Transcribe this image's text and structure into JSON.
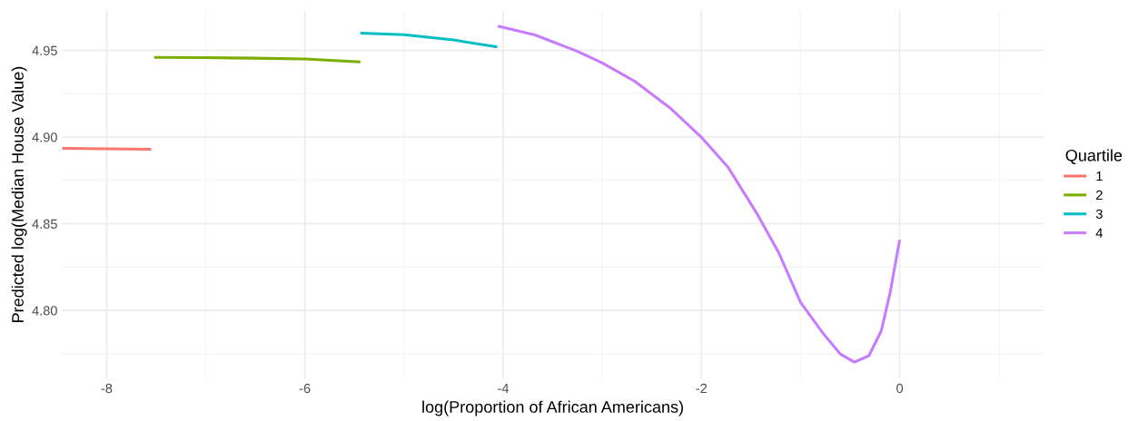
{
  "chart_data": {
    "type": "line",
    "xlabel": "log(Proportion of African Americans)",
    "ylabel": "Predicted log(Median House Value)",
    "legend_title": "Quartile",
    "legend": "right",
    "grid": true,
    "marker": "none",
    "line_style": "solid",
    "xlim": [
      -8.45,
      1.45
    ],
    "xticks": [
      -8,
      -6,
      -4,
      -2,
      0
    ],
    "ylim": [
      4.7605,
      4.973
    ],
    "yticks": [
      {
        "value": 4.8,
        "label": "4.80"
      },
      {
        "value": 4.85,
        "label": "4.85"
      },
      {
        "value": 4.9,
        "label": "4.90"
      },
      {
        "value": 4.95,
        "label": "4.95"
      }
    ],
    "series": [
      {
        "name": "1",
        "color": "#f8766d",
        "x": [
          -8.45,
          -8.0,
          -7.55
        ],
        "values": [
          4.8935,
          4.8932,
          4.893
        ]
      },
      {
        "name": "2",
        "color": "#7cae00",
        "x": [
          -7.52,
          -7.0,
          -6.5,
          -6.0,
          -5.44
        ],
        "values": [
          4.946,
          4.9458,
          4.9455,
          4.945,
          4.9434
        ]
      },
      {
        "name": "3",
        "color": "#00bfc4",
        "x": [
          -5.44,
          -5.0,
          -4.5,
          -4.06
        ],
        "values": [
          4.96,
          4.959,
          4.956,
          4.952
        ]
      },
      {
        "name": "4",
        "color": "#c77cff",
        "x": [
          -4.054,
          -3.68,
          -3.25,
          -3.0,
          -2.67,
          -2.31,
          -2.0,
          -1.73,
          -1.44,
          -1.22,
          -1.0,
          -0.78,
          -0.6,
          -0.457,
          -0.31,
          -0.185,
          -0.094,
          0.0
        ],
        "values": [
          4.964,
          4.9589,
          4.9494,
          4.9428,
          4.9321,
          4.9165,
          4.8999,
          4.8825,
          4.8559,
          4.8333,
          4.8047,
          4.7873,
          4.7749,
          4.7702,
          4.7739,
          4.7883,
          4.8109,
          4.8407
        ]
      }
    ]
  }
}
